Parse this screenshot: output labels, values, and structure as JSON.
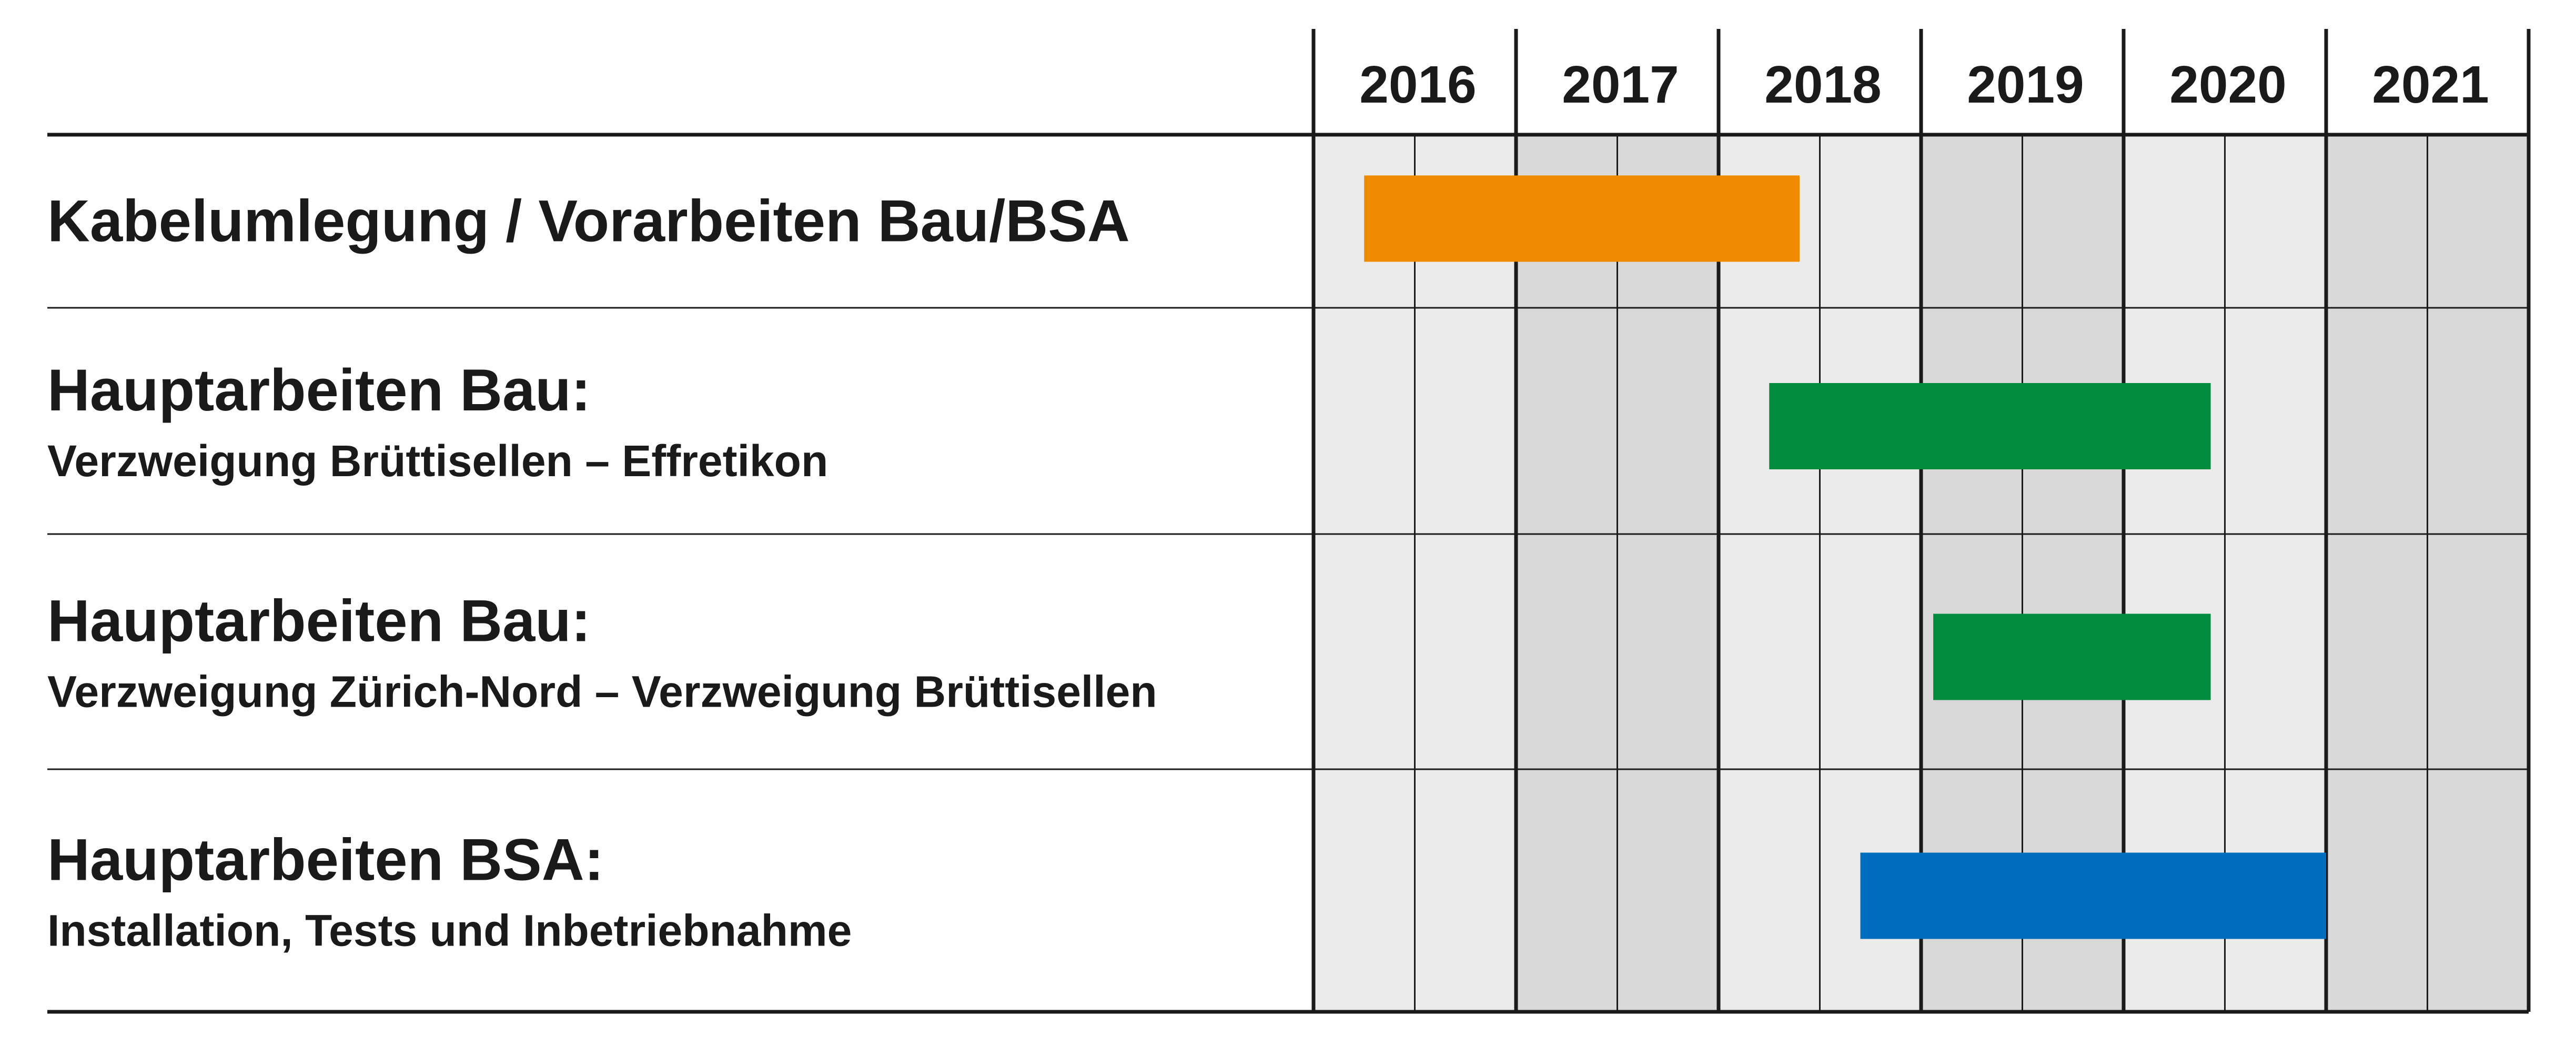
{
  "chart_data": {
    "type": "gantt",
    "years": [
      "2016",
      "2017",
      "2018",
      "2019",
      "2020",
      "2021"
    ],
    "x_range": [
      2016.0,
      2022.0
    ],
    "tasks": [
      {
        "title": "Kabelumlegung / Vorarbeiten Bau/BSA",
        "subtitle": "",
        "start": 2016.25,
        "end": 2018.4,
        "color": "#F08A00"
      },
      {
        "title": "Hauptarbeiten Bau:",
        "subtitle": "Verzweigung Brüttisellen – Effretikon",
        "start": 2018.25,
        "end": 2020.43,
        "color": "#008C3C"
      },
      {
        "title": "Hauptarbeiten Bau:",
        "subtitle": "Verzweigung Zürich-Nord –  Verzweigung Brüttisellen",
        "start": 2019.06,
        "end": 2020.43,
        "color": "#008C3C"
      },
      {
        "title": "Hauptarbeiten BSA:",
        "subtitle": "Installation, Tests und Inbetriebnahme",
        "start": 2018.7,
        "end": 2021.0,
        "color": "#006EBE"
      }
    ],
    "year_shading": [
      "#EBEBEB",
      "#D9D9D9",
      "#EBEBEB",
      "#D9D9D9",
      "#EBEBEB",
      "#D9D9D9"
    ],
    "grid": true
  }
}
